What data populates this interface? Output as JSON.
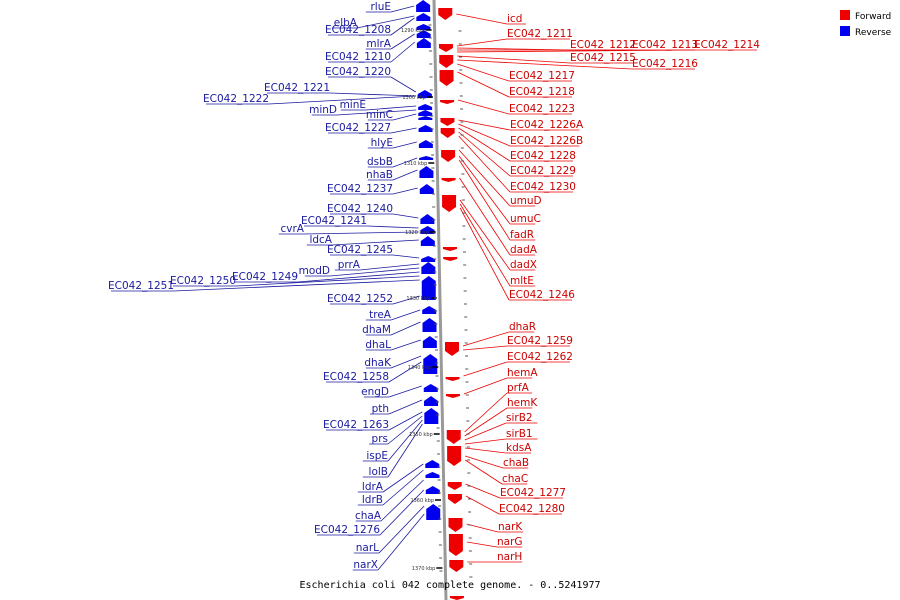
{
  "caption": "Escherichia coli 042 complete genome. - 0..5241977",
  "legend": [
    {
      "label": "Forward",
      "color": "#ee0000"
    },
    {
      "label": "Reverse",
      "color": "#0000ee"
    }
  ],
  "ticks": [
    "1290 kbp",
    "1300 kbp",
    "1310 kbp",
    "1320 kbp",
    "1330 kbp",
    "1340 kbp",
    "1350 kbp",
    "1360 kbp",
    "1370 kbp"
  ],
  "forward_genes": [
    "icd",
    "EC042_1211",
    "EC042_1212",
    "EC042_1213",
    "EC042_1214",
    "EC042_1215",
    "EC042_1216",
    "EC042_1217",
    "EC042_1218",
    "EC042_1223",
    "EC042_1226A",
    "EC042_1226B",
    "EC042_1228",
    "EC042_1229",
    "EC042_1230",
    "umuD",
    "umuC",
    "fadR",
    "dadA",
    "dadX",
    "mltE",
    "EC042_1246",
    "dhaR",
    "EC042_1259",
    "EC042_1262",
    "hemA",
    "prfA",
    "hemK",
    "sirB2",
    "sirB1",
    "kdsA",
    "chaB",
    "chaC",
    "EC042_1277",
    "EC042_1280",
    "narK",
    "narG",
    "narH"
  ],
  "reverse_genes": [
    "rluE",
    "elbA",
    "EC042_1208",
    "mlrA",
    "EC042_1210",
    "EC042_1220",
    "EC042_1221",
    "EC042_1222",
    "minE",
    "minD",
    "minC",
    "EC042_1227",
    "hlyE",
    "dsbB",
    "nhaB",
    "EC042_1237",
    "EC042_1240",
    "EC042_1241",
    "cvrA",
    "ldcA",
    "EC042_1245",
    "prrA",
    "modD",
    "EC042_1249",
    "EC042_1250",
    "EC042_1251",
    "EC042_1252",
    "treA",
    "dhaM",
    "dhaL",
    "dhaK",
    "EC042_1258",
    "engD",
    "pth",
    "EC042_1263",
    "prs",
    "ispE",
    "lolB",
    "ldrA",
    "ldrB",
    "chaA",
    "EC042_1276",
    "narL",
    "narX"
  ],
  "colors": {
    "forward": "#ee0000",
    "reverse": "#0000ee",
    "backbone": "#999999",
    "forward_leader": "#ee0000",
    "reverse_leader": "#1a1aa0"
  }
}
